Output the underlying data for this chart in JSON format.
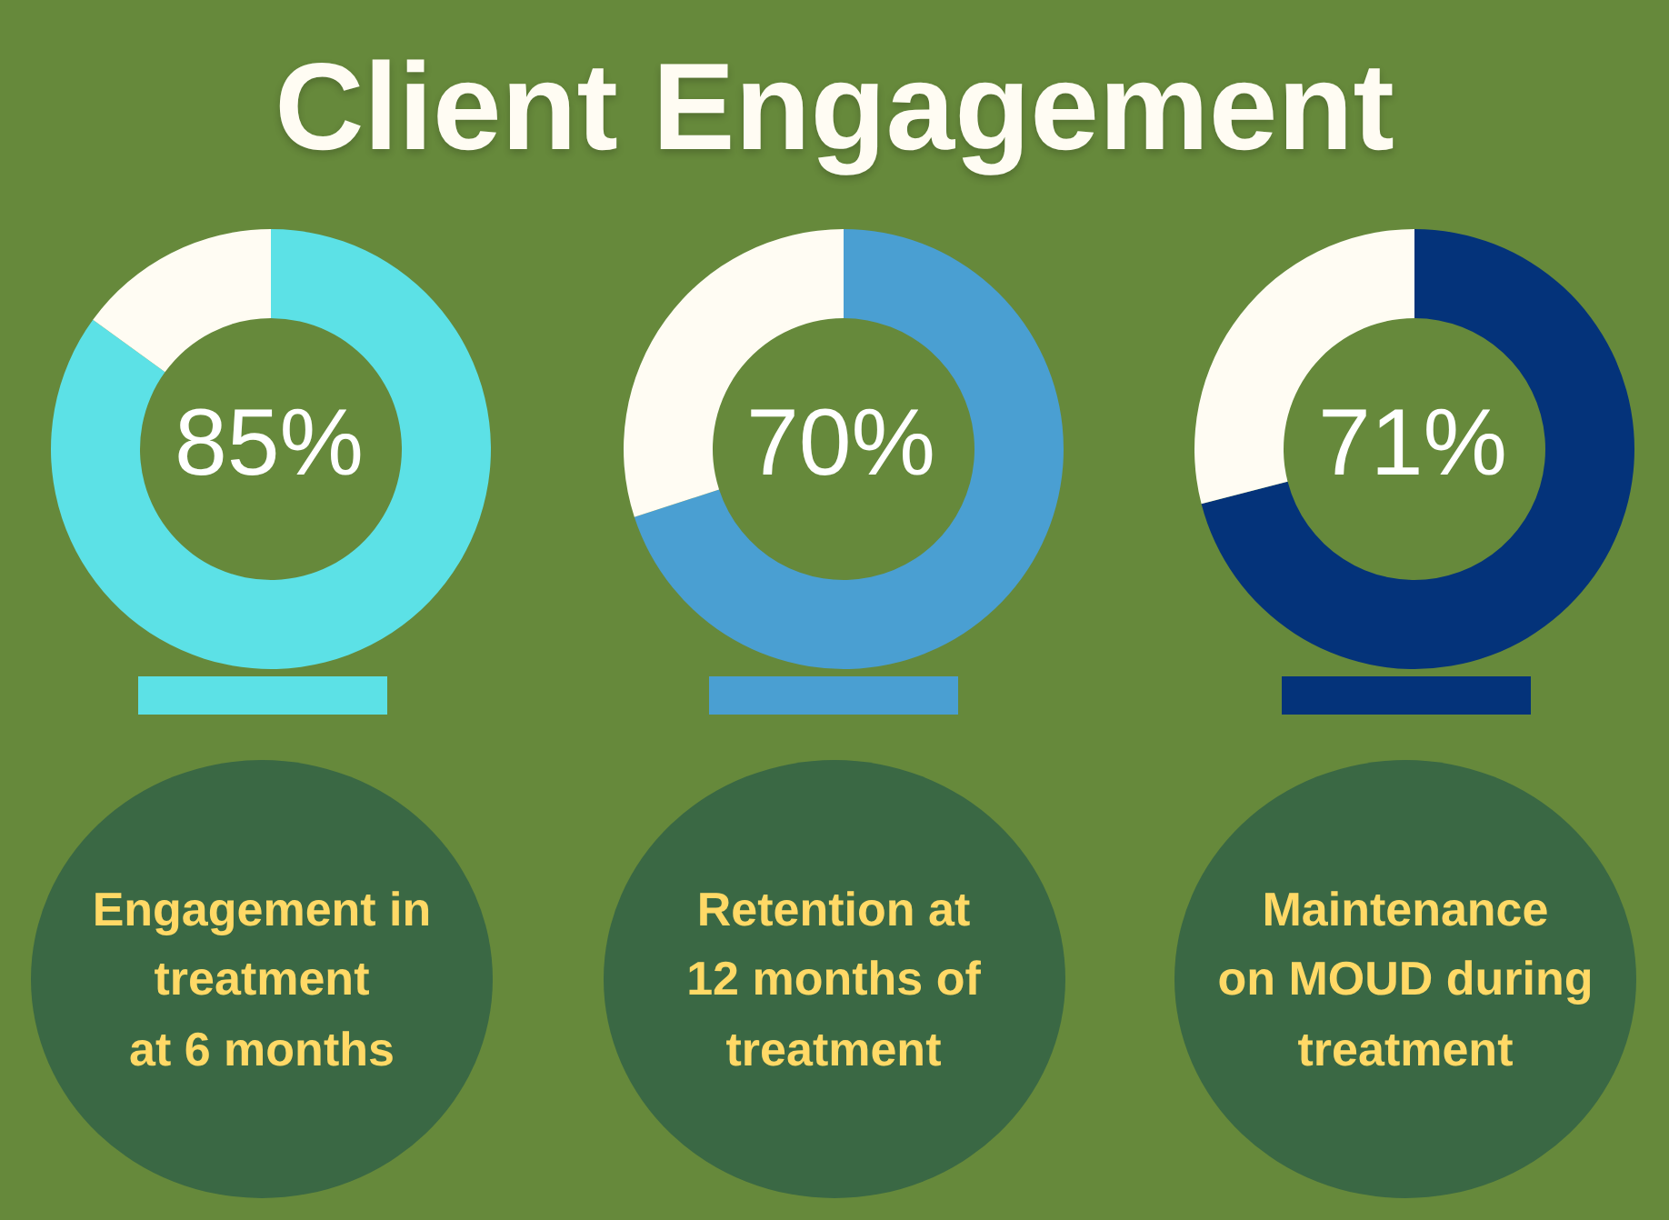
{
  "chart_data": [
    {
      "type": "other",
      "title": "Client Engagement"
    },
    {
      "type": "donut",
      "categories": [
        null,
        null
      ],
      "values": [
        85,
        15
      ],
      "colors": [
        "#5ce1e6",
        "#fffcf3"
      ],
      "value_labels": [
        "85%",
        null
      ],
      "annotations": [
        "Engagement in\ntreatment\nat 6 months"
      ]
    },
    {
      "type": "donut",
      "categories": [
        null,
        null
      ],
      "values": [
        70,
        30
      ],
      "colors": [
        "#4a9fd2",
        "#fffcf3"
      ],
      "value_labels": [
        "70%",
        null
      ],
      "annotations": [
        "Retention at\n12 months of\ntreatment"
      ]
    },
    {
      "type": "donut",
      "categories": [
        null,
        null
      ],
      "values": [
        71,
        29
      ],
      "colors": [
        "#04337a",
        "#fffcf3"
      ],
      "value_labels": [
        "71%",
        null
      ],
      "annotations": [
        "Maintenance\non MOUD during\ntreatment"
      ]
    }
  ]
}
